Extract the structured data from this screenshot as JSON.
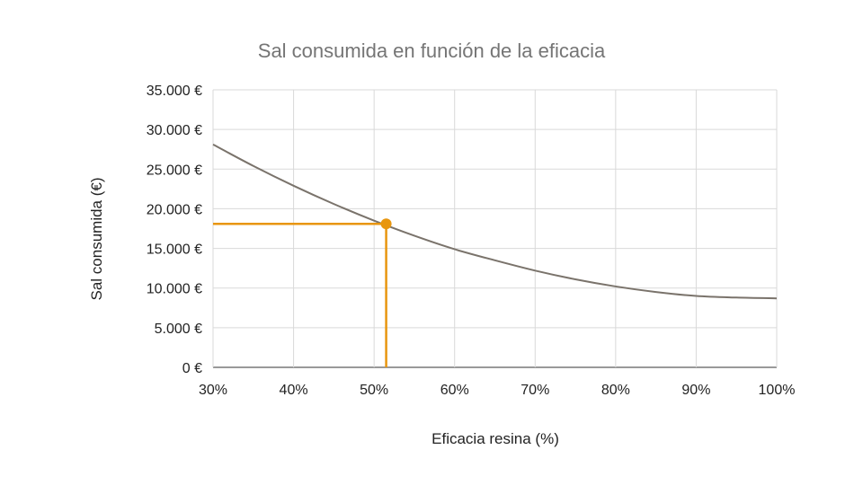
{
  "chart_data": {
    "type": "line",
    "title": "Sal consumida en función de la eficacia",
    "xlabel": "Eficacia resina (%)",
    "ylabel": "Sal consumida (€)",
    "xlim": [
      30,
      100
    ],
    "ylim": [
      0,
      35000
    ],
    "x_ticks": [
      30,
      40,
      50,
      60,
      70,
      80,
      90,
      100
    ],
    "x_tick_labels": [
      "30%",
      "40%",
      "50%",
      "60%",
      "70%",
      "80%",
      "90%",
      "100%"
    ],
    "y_ticks": [
      0,
      5000,
      10000,
      15000,
      20000,
      25000,
      30000,
      35000
    ],
    "y_tick_labels": [
      "0 €",
      "5.000 €",
      "10.000 €",
      "15.000 €",
      "20.000 €",
      "25.000 €",
      "30.000 €",
      "35.000 €"
    ],
    "grid": true,
    "series": [
      {
        "color": "#7a736b",
        "x": [
          30,
          35,
          40,
          45,
          50,
          55,
          60,
          65,
          70,
          75,
          80,
          85,
          90,
          95,
          100
        ],
        "y": [
          28100,
          25400,
          22900,
          20600,
          18500,
          16600,
          14900,
          13500,
          12200,
          11100,
          10200,
          9500,
          9000,
          8800,
          8700
        ]
      }
    ],
    "highlight": {
      "color": "#e8960f",
      "x": 51.5,
      "y": 18100
    }
  }
}
